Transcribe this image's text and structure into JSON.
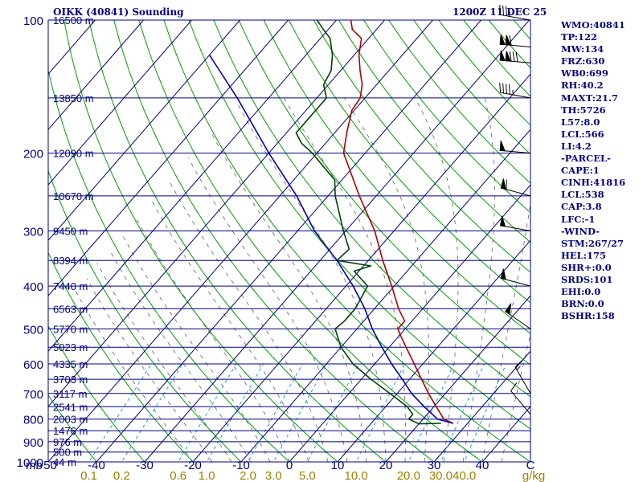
{
  "header": {
    "title": "OIKK (40841) Sounding",
    "time": "1200Z 11 DEC 25"
  },
  "indices": [
    "WMO:40841",
    "TP:122",
    "MW:134",
    "FRZ:630",
    "WB0:699",
    "RH:40.2",
    "MAXT:21.7",
    "TH:5726",
    "L57:8.0",
    "LCL:566",
    "LI:4.2",
    "-PARCEL-",
    "CAPE:1",
    "CINH:41816",
    "LCL:538",
    "CAP:3.8",
    "LFC:-1",
    "-WIND-",
    "STM:267/27",
    "HEL:175",
    "SHR+:0.0",
    "SRDS:101",
    "EHI:0.0",
    "BRN:0.0",
    "BSHR:158"
  ],
  "chart_data": {
    "type": "line",
    "diagram": "skew-t log-p",
    "x_axis": {
      "unit_label": "C",
      "ticks": [
        -50,
        -40,
        -30,
        -20,
        -10,
        0,
        10,
        20,
        30,
        40
      ],
      "range": [
        -50,
        50
      ]
    },
    "y_axis": {
      "unit_label": "mb",
      "ticks": [
        100,
        200,
        300,
        400,
        500,
        600,
        700,
        800,
        900,
        1000
      ],
      "range": [
        1000,
        100
      ],
      "scale": "log"
    },
    "height_labels": [
      {
        "p": 100,
        "label": "16500 m"
      },
      {
        "p": 150,
        "label": "13850 m"
      },
      {
        "p": 200,
        "label": "12090 m"
      },
      {
        "p": 250,
        "label": "10670 m"
      },
      {
        "p": 300,
        "label": "9450 m"
      },
      {
        "p": 350,
        "label": "8394 m"
      },
      {
        "p": 400,
        "label": "7440 m"
      },
      {
        "p": 450,
        "label": "6563 m"
      },
      {
        "p": 500,
        "label": "5770 m"
      },
      {
        "p": 550,
        "label": "5023 m"
      },
      {
        "p": 600,
        "label": "4335 m"
      },
      {
        "p": 650,
        "label": "3703 m"
      },
      {
        "p": 700,
        "label": "3117 m"
      },
      {
        "p": 750,
        "label": "2541 m"
      },
      {
        "p": 800,
        "label": "2003 m"
      },
      {
        "p": 850,
        "label": "1476 m"
      },
      {
        "p": 900,
        "label": "976 m"
      },
      {
        "p": 950,
        "label": "500 m"
      },
      {
        "p": 1000,
        "label": "44 m"
      }
    ],
    "mixing_ratio": {
      "unit_label": "g/kg",
      "values": [
        0.1,
        0.2,
        0.6,
        1.0,
        2.0,
        3.0,
        5.0,
        10.0,
        20.0,
        30.0,
        40.0
      ],
      "labels": [
        "0.1",
        "0.2",
        "0.6",
        "1.0",
        "2.0",
        "3.0",
        "5.0",
        "10.0",
        "20.0",
        "30.0",
        "40.0"
      ]
    },
    "series": [
      {
        "role": "temperature",
        "color": "#b00000",
        "points": [
          [
            818,
            27.0
          ],
          [
            800,
            24.3
          ],
          [
            750,
            20.5
          ],
          [
            700,
            16.5
          ],
          [
            650,
            12.5
          ],
          [
            600,
            8.2
          ],
          [
            550,
            3.5
          ],
          [
            520,
            0.5
          ],
          [
            500,
            -1.5
          ],
          [
            480,
            -1.5
          ],
          [
            450,
            -5.0
          ],
          [
            400,
            -10.5
          ],
          [
            350,
            -17.0
          ],
          [
            300,
            -24.0
          ],
          [
            250,
            -33.5
          ],
          [
            200,
            -44.5
          ],
          [
            180,
            -47.5
          ],
          [
            160,
            -50.5
          ],
          [
            150,
            -51.0
          ],
          [
            140,
            -53.0
          ],
          [
            130,
            -56.0
          ],
          [
            120,
            -59.0
          ],
          [
            110,
            -61.5
          ],
          [
            105,
            -65.0
          ],
          [
            100,
            -67.0
          ]
        ]
      },
      {
        "role": "dewpoint",
        "color": "#004000",
        "points": [
          [
            818,
            24.5
          ],
          [
            820,
            20.0
          ],
          [
            800,
            17.0
          ],
          [
            780,
            17.0
          ],
          [
            750,
            14.5
          ],
          [
            700,
            8.5
          ],
          [
            650,
            2.0
          ],
          [
            600,
            -4.5
          ],
          [
            550,
            -10.0
          ],
          [
            500,
            -14.5
          ],
          [
            480,
            -14.0
          ],
          [
            450,
            -14.0
          ],
          [
            400,
            -15.5
          ],
          [
            370,
            -21.0
          ],
          [
            360,
            -18.5
          ],
          [
            350,
            -26.5
          ],
          [
            330,
            -26.0
          ],
          [
            300,
            -30.5
          ],
          [
            250,
            -38.5
          ],
          [
            230,
            -41.5
          ],
          [
            200,
            -51.0
          ],
          [
            190,
            -55.0
          ],
          [
            180,
            -58.0
          ],
          [
            150,
            -58.0
          ],
          [
            140,
            -61.0
          ],
          [
            130,
            -62.0
          ],
          [
            120,
            -64.5
          ],
          [
            110,
            -68.0
          ],
          [
            105,
            -71.0
          ],
          [
            100,
            -74.0
          ]
        ]
      },
      {
        "role": "parcel",
        "color": "#0000b0",
        "points": [
          [
            818,
            27.0
          ],
          [
            800,
            23.0
          ],
          [
            750,
            18.0
          ],
          [
            700,
            13.0
          ],
          [
            650,
            8.5
          ],
          [
            600,
            3.5
          ],
          [
            550,
            -1.5
          ],
          [
            500,
            -6.8
          ],
          [
            450,
            -12.0
          ],
          [
            400,
            -18.5
          ],
          [
            350,
            -26.5
          ],
          [
            300,
            -36.5
          ],
          [
            250,
            -46.5
          ],
          [
            200,
            -60.0
          ],
          [
            150,
            -76.5
          ],
          [
            120,
            -90.0
          ]
        ]
      }
    ],
    "wind_barbs": [
      {
        "p": 100,
        "dir": 280,
        "kt": 35
      },
      {
        "p": 115,
        "dir": 275,
        "kt": 110
      },
      {
        "p": 125,
        "dir": 275,
        "kt": 130
      },
      {
        "p": 150,
        "dir": 280,
        "kt": 45
      },
      {
        "p": 200,
        "dir": 275,
        "kt": 50
      },
      {
        "p": 250,
        "dir": 285,
        "kt": 60
      },
      {
        "p": 300,
        "dir": 280,
        "kt": 50
      },
      {
        "p": 400,
        "dir": 285,
        "kt": 50
      },
      {
        "p": 500,
        "dir": 305,
        "kt": 50
      },
      {
        "p": 700,
        "dir": 330,
        "kt": 15
      },
      {
        "p": 780,
        "dir": 320,
        "kt": 10
      }
    ]
  }
}
